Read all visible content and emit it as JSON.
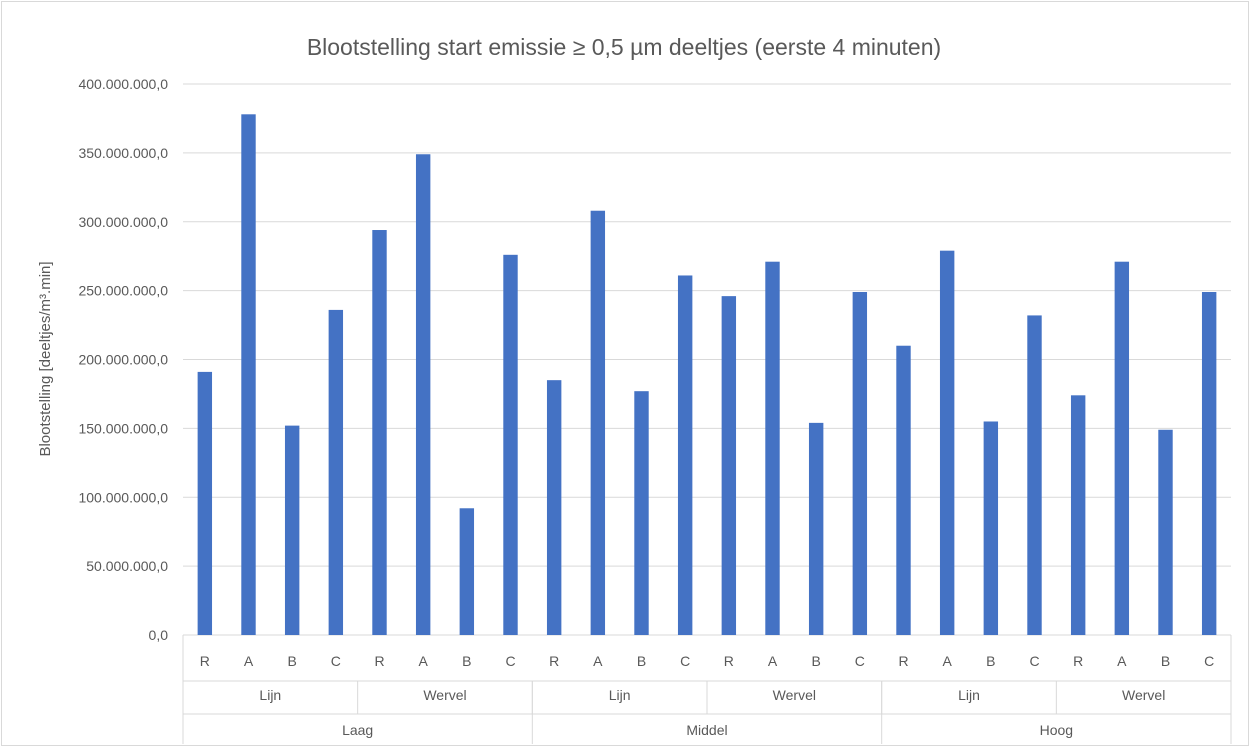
{
  "chart_data": {
    "type": "bar",
    "title": "Blootstelling start emissie ≥ 0,5 µm deeltjes (eerste 4 minuten)",
    "ylabel": "Blootstelling [deeltjes/m³.min]",
    "xlabel": "",
    "ylim": [
      0,
      400000000
    ],
    "yticks": [
      {
        "value": 0,
        "label": "0,0"
      },
      {
        "value": 50000000,
        "label": "50.000.000,0"
      },
      {
        "value": 100000000,
        "label": "100.000.000,0"
      },
      {
        "value": 150000000,
        "label": "150.000.000,0"
      },
      {
        "value": 200000000,
        "label": "200.000.000,0"
      },
      {
        "value": 250000000,
        "label": "250.000.000,0"
      },
      {
        "value": 300000000,
        "label": "300.000.000,0"
      },
      {
        "value": 350000000,
        "label": "350.000.000,0"
      },
      {
        "value": 400000000,
        "label": "400.000.000,0"
      }
    ],
    "grid": true,
    "legend": "none",
    "bar_color": "#4472c4",
    "groups": [
      {
        "label": "Laag",
        "subgroups": [
          {
            "label": "Lijn",
            "categories": [
              "R",
              "A",
              "B",
              "C"
            ],
            "values": [
              191000000,
              378000000,
              152000000,
              236000000
            ]
          },
          {
            "label": "Wervel",
            "categories": [
              "R",
              "A",
              "B",
              "C"
            ],
            "values": [
              294000000,
              349000000,
              92000000,
              276000000
            ]
          }
        ]
      },
      {
        "label": "Middel",
        "subgroups": [
          {
            "label": "Lijn",
            "categories": [
              "R",
              "A",
              "B",
              "C"
            ],
            "values": [
              185000000,
              308000000,
              177000000,
              261000000
            ]
          },
          {
            "label": "Wervel",
            "categories": [
              "R",
              "A",
              "B",
              "C"
            ],
            "values": [
              246000000,
              271000000,
              154000000,
              249000000
            ]
          }
        ]
      },
      {
        "label": "Hoog",
        "subgroups": [
          {
            "label": "Lijn",
            "categories": [
              "R",
              "A",
              "B",
              "C"
            ],
            "values": [
              210000000,
              279000000,
              155000000,
              232000000
            ]
          },
          {
            "label": "Wervel",
            "categories": [
              "R",
              "A",
              "B",
              "C"
            ],
            "values": [
              174000000,
              271000000,
              149000000,
              249000000
            ]
          }
        ]
      }
    ]
  }
}
